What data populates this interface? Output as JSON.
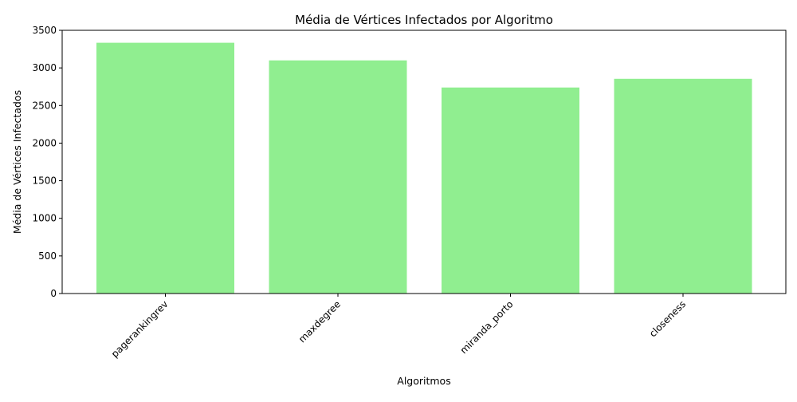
{
  "chart_data": {
    "type": "bar",
    "title": "Média de Vértices Infectados por Algoritmo",
    "xlabel": "Algoritmos",
    "ylabel": "Média de Vértices Infectados",
    "categories": [
      "pagerankingrev",
      "maxdegree",
      "miranda_porto",
      "closeness"
    ],
    "values": [
      3335,
      3100,
      2740,
      2855
    ],
    "ylim": [
      0,
      3500
    ],
    "yticks": [
      0,
      500,
      1000,
      1500,
      2000,
      2500,
      3000,
      3500
    ],
    "bar_color": "#90ee90",
    "grid": false,
    "legend": "none"
  }
}
